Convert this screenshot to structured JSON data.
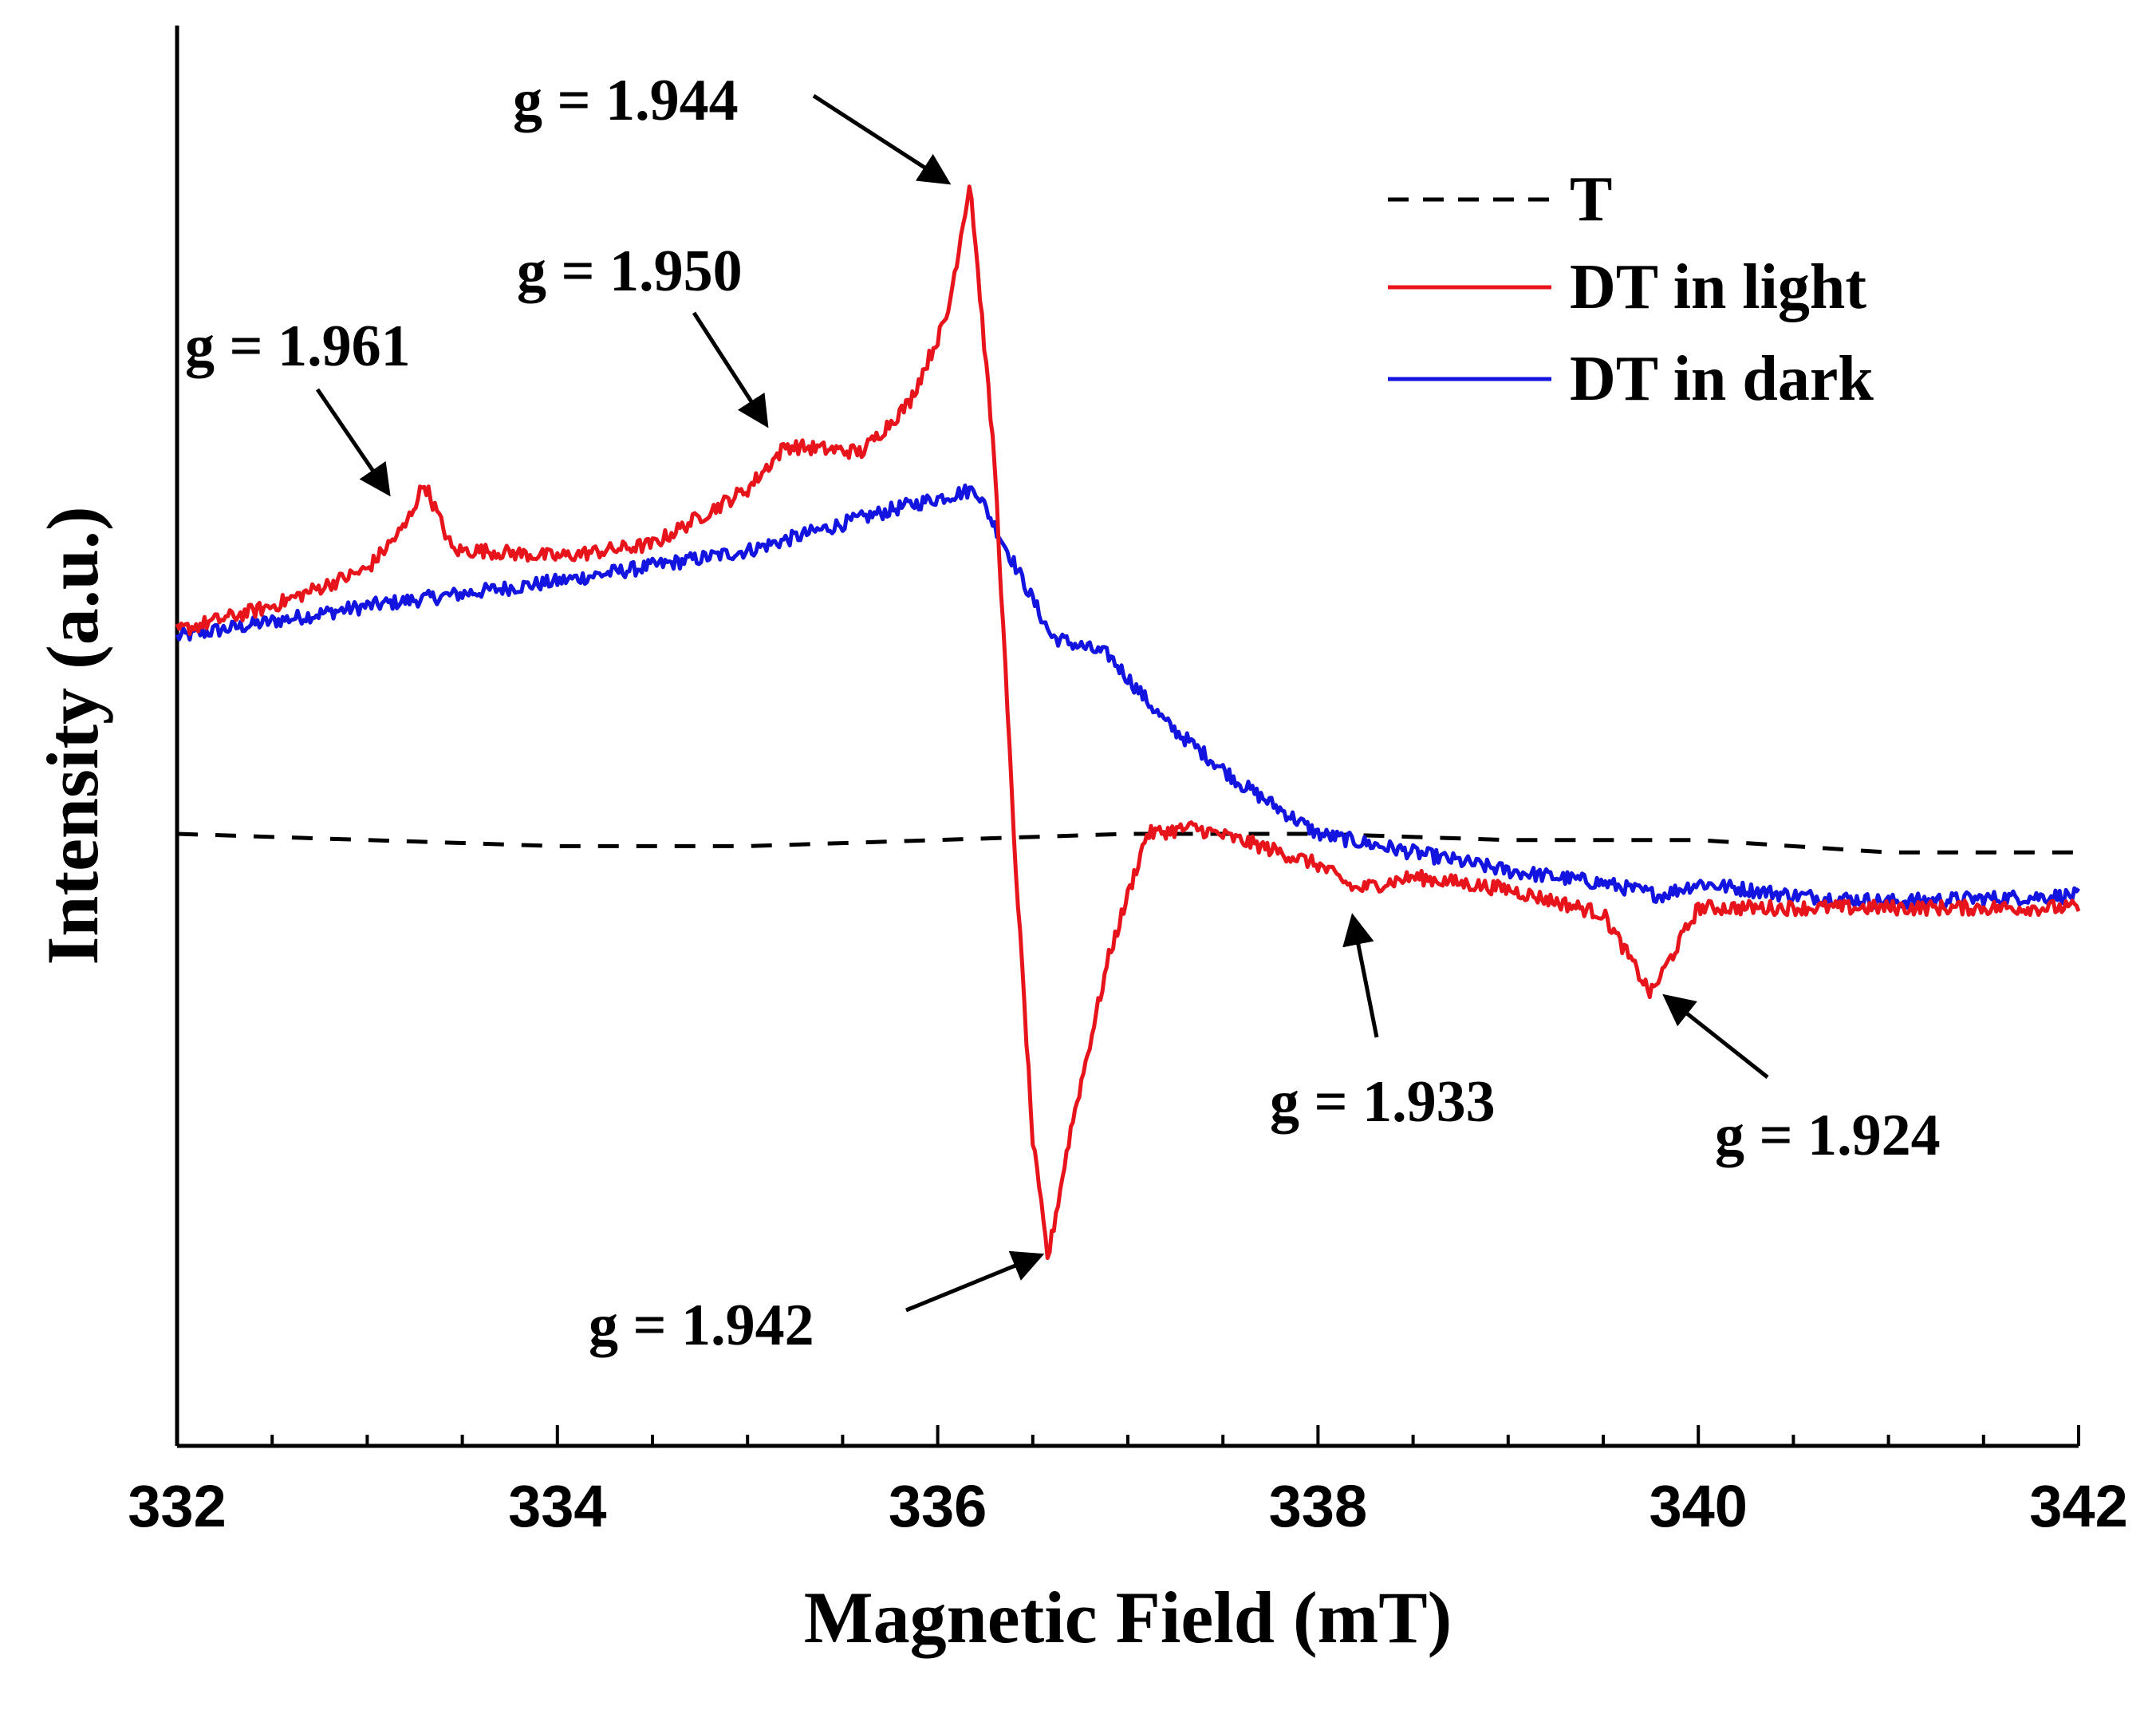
{
  "chart_data": {
    "type": "line",
    "title": "",
    "xlabel": "Magnetic Field (mT)",
    "ylabel": "Intensity (a.u.)",
    "xlim": [
      332,
      342
    ],
    "ylim": [
      -1.0,
      1.0
    ],
    "x_ticks": [
      332,
      334,
      336,
      338,
      340,
      342
    ],
    "x_tick_labels": [
      "332",
      "334",
      "336",
      "338",
      "340",
      "342"
    ],
    "y_ticks_shown": false,
    "grid": false,
    "legend_position": "top-right",
    "series": [
      {
        "name": "T",
        "color": "#000000",
        "style": "dashed",
        "x": [
          332,
          333,
          334,
          335,
          336,
          337,
          338,
          339,
          340,
          341,
          342
        ],
        "y": [
          0.0,
          -0.01,
          -0.02,
          -0.02,
          -0.01,
          0.0,
          0.0,
          -0.01,
          -0.01,
          -0.03,
          -0.03
        ]
      },
      {
        "name": "DT in light",
        "color": "#e8141b",
        "style": "solid",
        "noise": 0.012,
        "x": [
          332,
          332.5,
          333.0,
          333.2,
          333.3,
          333.45,
          333.6,
          334.0,
          334.5,
          335.0,
          335.2,
          335.6,
          335.85,
          336.05,
          336.17,
          336.3,
          336.4,
          336.5,
          336.58,
          336.7,
          336.9,
          337.1,
          337.35,
          337.7,
          338.0,
          338.2,
          338.5,
          339.0,
          339.5,
          339.75,
          340.0,
          340.5,
          341.0,
          341.5,
          342
        ],
        "y": [
          0.33,
          0.37,
          0.43,
          0.5,
          0.57,
          0.46,
          0.46,
          0.45,
          0.47,
          0.56,
          0.63,
          0.62,
          0.7,
          0.84,
          1.06,
          0.6,
          0.0,
          -0.5,
          -0.69,
          -0.48,
          -0.2,
          0.0,
          0.01,
          -0.02,
          -0.05,
          -0.09,
          -0.07,
          -0.09,
          -0.13,
          -0.26,
          -0.12,
          -0.12,
          -0.12,
          -0.12,
          -0.12
        ]
      },
      {
        "name": "DT in dark",
        "color": "#1414e0",
        "style": "solid",
        "noise": 0.012,
        "x": [
          332,
          333,
          334,
          335,
          335.8,
          336.2,
          336.4,
          336.6,
          336.9,
          337.2,
          337.6,
          338.0,
          338.5,
          339.0,
          339.5,
          339.8,
          340.0,
          340.5,
          341.0,
          342
        ],
        "y": [
          0.32,
          0.37,
          0.41,
          0.46,
          0.53,
          0.56,
          0.44,
          0.32,
          0.29,
          0.18,
          0.08,
          0.0,
          -0.03,
          -0.06,
          -0.08,
          -0.1,
          -0.08,
          -0.1,
          -0.11,
          -0.1
        ]
      }
    ],
    "annotations": [
      {
        "text": "g = 1.961",
        "point": [
          333.3,
          0.57
        ]
      },
      {
        "text": "g = 1.950",
        "point": [
          335.2,
          0.63
        ]
      },
      {
        "text": "g = 1.944",
        "point": [
          336.17,
          1.06
        ]
      },
      {
        "text": "g = 1.942",
        "point": [
          336.58,
          -0.69
        ]
      },
      {
        "text": "g = 1.933",
        "point": [
          338.2,
          -0.09
        ]
      },
      {
        "text": "g = 1.924",
        "point": [
          339.75,
          -0.26
        ]
      }
    ]
  }
}
